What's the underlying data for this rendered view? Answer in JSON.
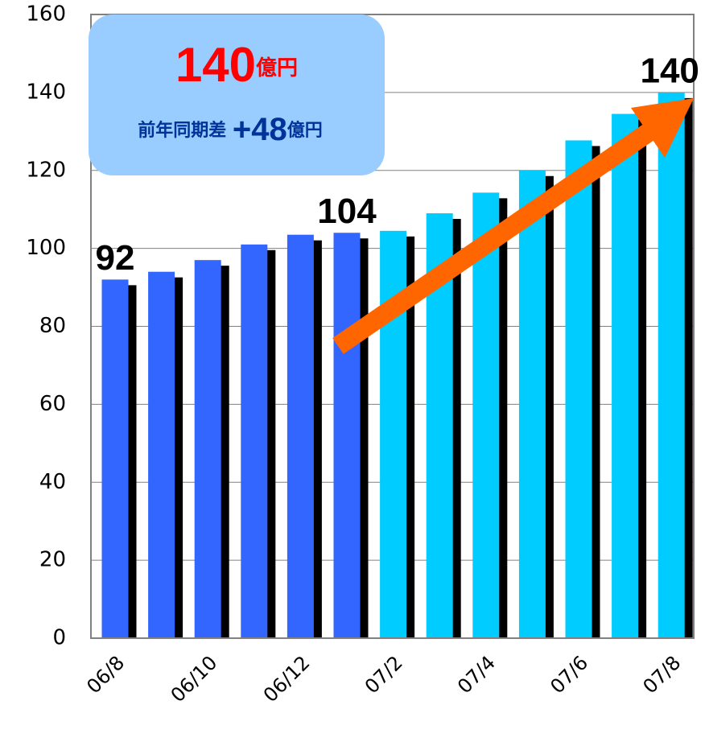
{
  "chart_data": {
    "type": "bar",
    "categories": [
      "06/8",
      null,
      "06/10",
      null,
      "06/12",
      null,
      "07/2",
      null,
      "07/4",
      null,
      "07/6",
      null,
      "07/8"
    ],
    "values": [
      92,
      94,
      97,
      101,
      103.5,
      104,
      104.5,
      109,
      114.3,
      120,
      127.7,
      134.5,
      140
    ],
    "value_labels": [
      "92",
      null,
      null,
      null,
      null,
      "104",
      null,
      null,
      null,
      null,
      null,
      null,
      "140"
    ],
    "colors": [
      "#3366ff",
      "#3366ff",
      "#3366ff",
      "#3366ff",
      "#3366ff",
      "#3366ff",
      "#00ccff",
      "#00ccff",
      "#00ccff",
      "#00ccff",
      "#00ccff",
      "#00ccff",
      "#00ccff"
    ],
    "ylim": [
      0,
      160
    ],
    "yticks": [
      0,
      20,
      40,
      60,
      80,
      100,
      120,
      140,
      160
    ],
    "grid": true,
    "annotations": {
      "total": "140",
      "total_unit": "億円",
      "diff_text": "前年同期差 ",
      "diff_value": "+48",
      "diff_unit": "億円"
    }
  }
}
